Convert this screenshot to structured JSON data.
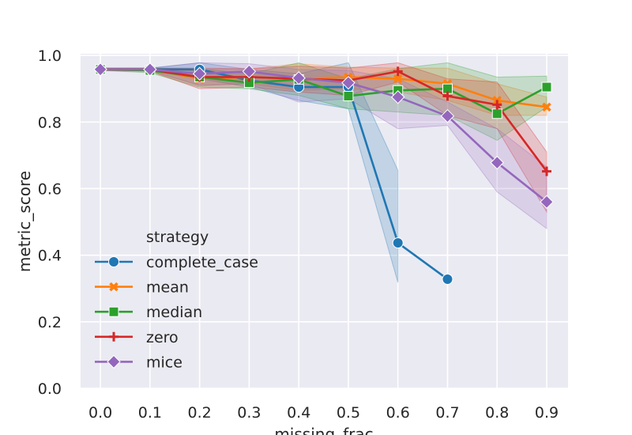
{
  "chart_data": {
    "type": "line",
    "xlabel": "missing_frac",
    "ylabel": "metric_score",
    "x": [
      0.0,
      0.1,
      0.2,
      0.3,
      0.4,
      0.5,
      0.6,
      0.7,
      0.8,
      0.9
    ],
    "xticks": [
      "0.0",
      "0.1",
      "0.2",
      "0.3",
      "0.4",
      "0.5",
      "0.6",
      "0.7",
      "0.8",
      "0.9"
    ],
    "xlim": [
      -0.04,
      0.943
    ],
    "yticks": [
      "0.0",
      "0.2",
      "0.4",
      "0.6",
      "0.8",
      "1.0"
    ],
    "ylim": [
      0.0,
      1.005
    ],
    "grid": true,
    "legend": {
      "title": "strategy",
      "placement": "lower-left"
    },
    "series": [
      {
        "name": "complete_case",
        "color": "#1f77b4",
        "marker": "circle",
        "values": [
          0.958,
          0.958,
          0.958,
          0.925,
          0.905,
          0.905,
          0.437,
          0.328,
          null,
          null
        ],
        "lower": [
          0.955,
          0.955,
          0.93,
          0.905,
          0.865,
          0.84,
          0.318,
          null,
          null,
          null
        ],
        "upper": [
          0.962,
          0.962,
          0.978,
          0.958,
          0.945,
          0.978,
          0.655,
          null,
          null,
          null
        ]
      },
      {
        "name": "mean",
        "color": "#ff7f0e",
        "marker": "x",
        "values": [
          0.958,
          0.958,
          0.93,
          0.935,
          0.93,
          0.935,
          0.93,
          0.915,
          0.865,
          0.845
        ],
        "lower": [
          0.955,
          0.953,
          0.91,
          0.915,
          0.895,
          0.9,
          0.89,
          0.865,
          0.82,
          0.82
        ],
        "upper": [
          0.962,
          0.962,
          0.958,
          0.96,
          0.975,
          0.965,
          0.962,
          0.962,
          0.915,
          0.875
        ]
      },
      {
        "name": "median",
        "color": "#2ca02c",
        "marker": "square",
        "values": [
          0.958,
          0.955,
          0.935,
          0.918,
          0.928,
          0.878,
          0.895,
          0.9,
          0.825,
          0.905
        ],
        "lower": [
          0.955,
          0.948,
          0.905,
          0.9,
          0.88,
          0.84,
          0.83,
          0.82,
          0.745,
          0.845
        ],
        "upper": [
          0.962,
          0.962,
          0.96,
          0.945,
          0.978,
          0.93,
          0.96,
          0.978,
          0.935,
          0.938
        ]
      },
      {
        "name": "zero",
        "color": "#d62728",
        "marker": "plus",
        "values": [
          0.958,
          0.958,
          0.935,
          0.935,
          0.93,
          0.925,
          0.952,
          0.878,
          0.852,
          0.652
        ],
        "lower": [
          0.955,
          0.953,
          0.9,
          0.905,
          0.89,
          0.88,
          0.92,
          0.82,
          0.78,
          0.53
        ],
        "upper": [
          0.962,
          0.962,
          0.962,
          0.96,
          0.968,
          0.962,
          0.978,
          0.93,
          0.92,
          0.71
        ]
      },
      {
        "name": "mice",
        "color": "#9467bd",
        "marker": "diamond",
        "values": [
          0.958,
          0.958,
          0.945,
          0.952,
          0.932,
          0.918,
          0.875,
          0.818,
          0.678,
          0.56
        ],
        "lower": [
          0.955,
          0.955,
          0.91,
          0.915,
          0.86,
          0.87,
          0.78,
          0.79,
          0.59,
          0.48
        ],
        "upper": [
          0.962,
          0.962,
          0.978,
          0.975,
          0.958,
          0.955,
          0.93,
          0.86,
          0.78,
          0.665
        ]
      }
    ]
  }
}
